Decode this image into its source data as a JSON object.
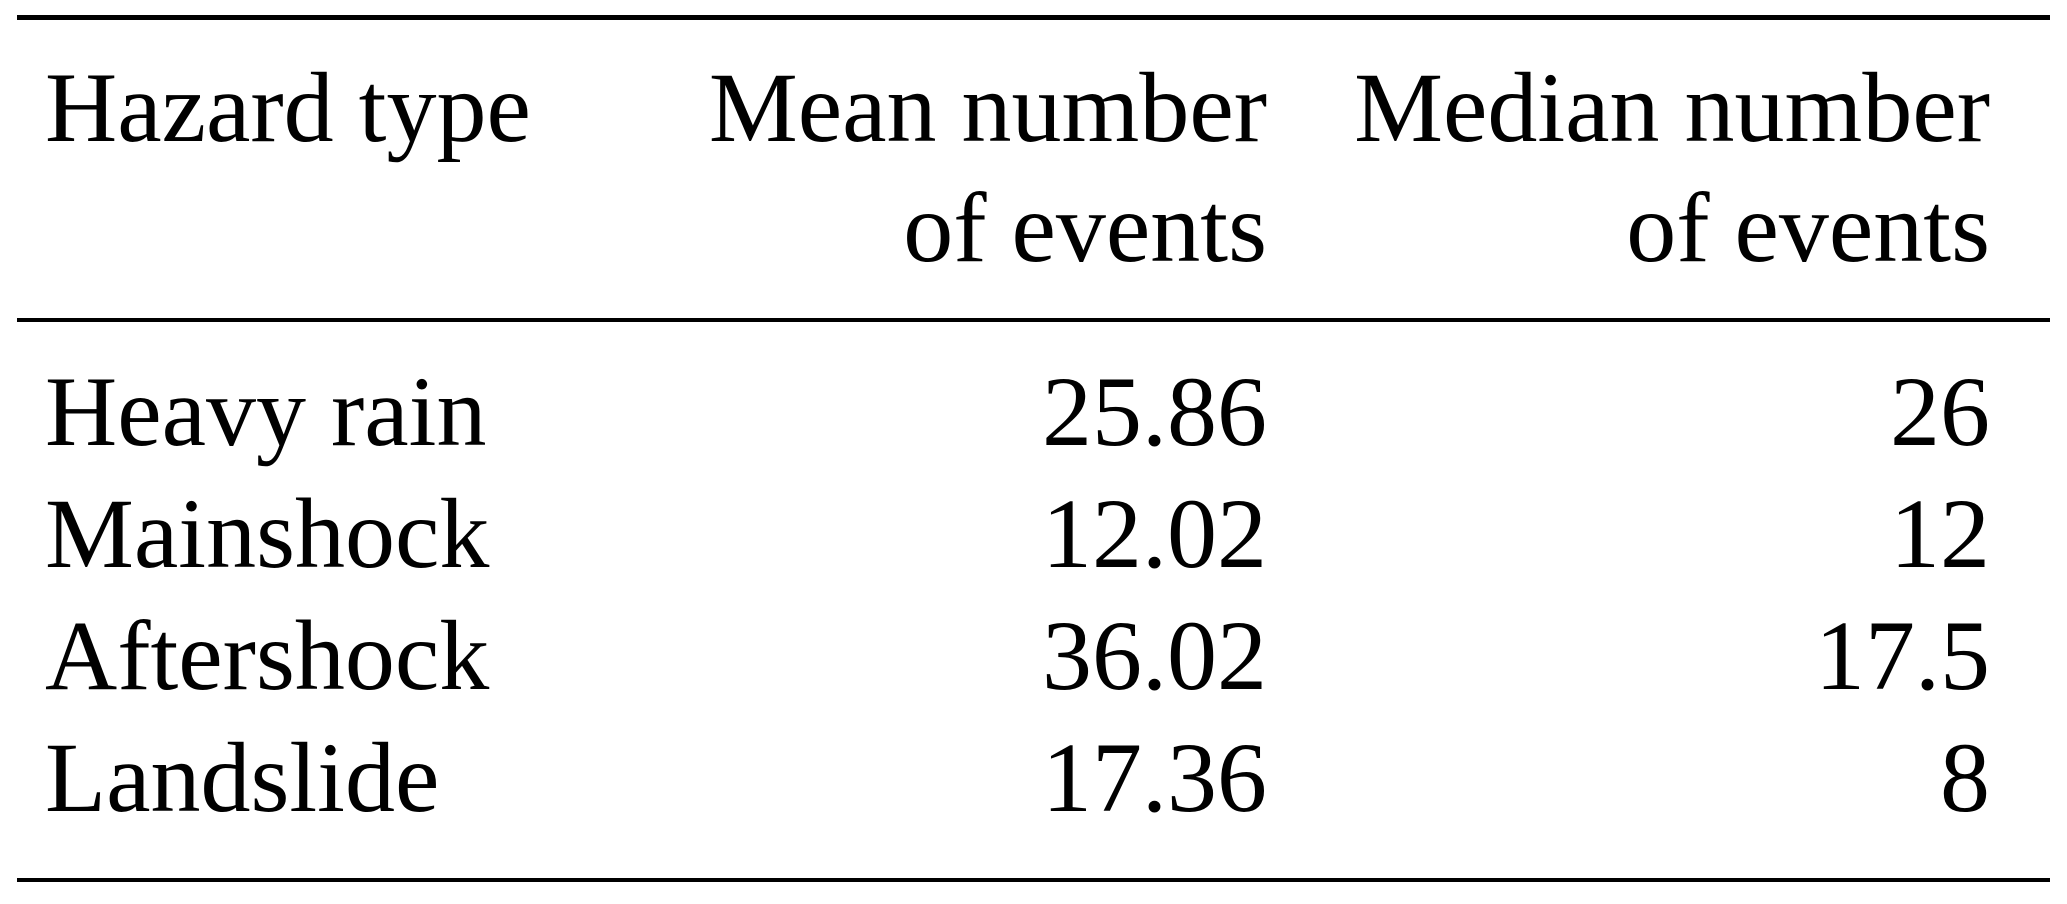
{
  "table": {
    "columns": [
      {
        "line1": "Hazard type",
        "line2": ""
      },
      {
        "line1": "Mean number",
        "line2": "of events"
      },
      {
        "line1": "Median number",
        "line2": "of events"
      }
    ],
    "rows": [
      {
        "hazard": "Heavy rain",
        "mean": "25.86",
        "median": "26"
      },
      {
        "hazard": "Mainshock",
        "mean": "12.02",
        "median": "12"
      },
      {
        "hazard": "Aftershock",
        "mean": "36.02",
        "median": "17.5"
      },
      {
        "hazard": "Landslide",
        "mean": "17.36",
        "median": "8"
      }
    ]
  },
  "chart_data": {
    "type": "table",
    "title": "",
    "columns": [
      "Hazard type",
      "Mean number of events",
      "Median number of events"
    ],
    "rows": [
      [
        "Heavy rain",
        25.86,
        26
      ],
      [
        "Mainshock",
        12.02,
        12
      ],
      [
        "Aftershock",
        36.02,
        17.5
      ],
      [
        "Landslide",
        17.36,
        8
      ]
    ]
  },
  "colors": {
    "text": "#000000",
    "background": "#ffffff",
    "rule": "#000000"
  }
}
